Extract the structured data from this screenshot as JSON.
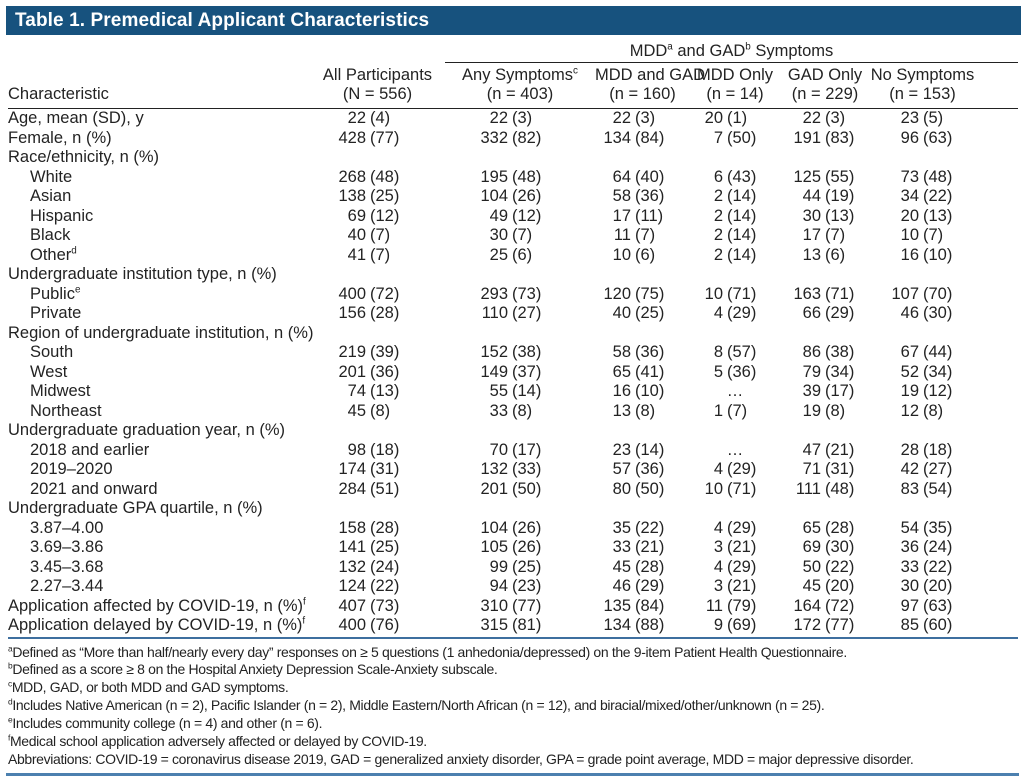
{
  "title": "Table 1. Premedical Applicant Characteristics",
  "colors": {
    "title_bar": "#17527E",
    "black_rule": "#222222",
    "table_end_rule_blue": "#3E6F9F",
    "page_bottom_rule_blue": "#4C80AF"
  },
  "table": {
    "row_header_label": "Characteristic",
    "spanner_label": "MDD^a and GAD^b Symptoms",
    "columns": [
      {
        "label": "All Participants",
        "n": "(N = 556)"
      },
      {
        "label": "Any Symptoms^c",
        "n": "(n = 403)"
      },
      {
        "label": "MDD and GAD",
        "n": "(n = 160)"
      },
      {
        "label": "MDD Only",
        "n": "(n = 14)"
      },
      {
        "label": "GAD Only",
        "n": "(n = 229)"
      },
      {
        "label": "No Symptoms",
        "n": "(n = 153)"
      }
    ],
    "rows": [
      {
        "label": "Age, mean (SD), y",
        "values": [
          "22 (4)",
          "22 (3)",
          "22 (3)",
          "20 (1)",
          "22 (3)",
          "23 (5)"
        ]
      },
      {
        "label": "Female, n (%)",
        "values": [
          "428 (77)",
          "332 (82)",
          "134 (84)",
          "7 (50)",
          "191 (83)",
          "96 (63)"
        ]
      },
      {
        "label": "Race/ethnicity, n (%)"
      },
      {
        "label": "White",
        "indent": true,
        "values": [
          "268 (48)",
          "195 (48)",
          "64 (40)",
          "6 (43)",
          "125 (55)",
          "73 (48)"
        ]
      },
      {
        "label": "Asian",
        "indent": true,
        "values": [
          "138 (25)",
          "104 (26)",
          "58 (36)",
          "2 (14)",
          "44 (19)",
          "34 (22)"
        ]
      },
      {
        "label": "Hispanic",
        "indent": true,
        "values": [
          "69 (12)",
          "49 (12)",
          "17 (11)",
          "2 (14)",
          "30 (13)",
          "20 (13)"
        ]
      },
      {
        "label": "Black",
        "indent": true,
        "values": [
          "40 (7)",
          "30 (7)",
          "11 (7)",
          "2 (14)",
          "17 (7)",
          "10 (7)"
        ]
      },
      {
        "label": "Other^d",
        "indent": true,
        "values": [
          "41 (7)",
          "25 (6)",
          "10 (6)",
          "2 (14)",
          "13 (6)",
          "16 (10)"
        ]
      },
      {
        "label": "Undergraduate institution type, n (%)"
      },
      {
        "label": "Public^e",
        "indent": true,
        "values": [
          "400 (72)",
          "293 (73)",
          "120 (75)",
          "10 (71)",
          "163 (71)",
          "107 (70)"
        ]
      },
      {
        "label": "Private",
        "indent": true,
        "values": [
          "156 (28)",
          "110 (27)",
          "40 (25)",
          "4 (29)",
          "66 (29)",
          "46 (30)"
        ]
      },
      {
        "label": "Region of undergraduate institution, n (%)"
      },
      {
        "label": "South",
        "indent": true,
        "values": [
          "219 (39)",
          "152 (38)",
          "58 (36)",
          "8 (57)",
          "86 (38)",
          "67 (44)"
        ]
      },
      {
        "label": "West",
        "indent": true,
        "values": [
          "201 (36)",
          "149 (37)",
          "65 (41)",
          "5 (36)",
          "79 (34)",
          "52 (34)"
        ]
      },
      {
        "label": "Midwest",
        "indent": true,
        "values": [
          "74 (13)",
          "55 (14)",
          "16 (10)",
          "…",
          "39 (17)",
          "19 (12)"
        ]
      },
      {
        "label": "Northeast",
        "indent": true,
        "values": [
          "45 (8)",
          "33 (8)",
          "13 (8)",
          "1 (7)",
          "19 (8)",
          "12 (8)"
        ]
      },
      {
        "label": "Undergraduate graduation year, n (%)"
      },
      {
        "label": "2018 and earlier",
        "indent": true,
        "values": [
          "98 (18)",
          "70 (17)",
          "23 (14)",
          "…",
          "47 (21)",
          "28 (18)"
        ]
      },
      {
        "label": "2019–2020",
        "indent": true,
        "values": [
          "174 (31)",
          "132 (33)",
          "57 (36)",
          "4 (29)",
          "71 (31)",
          "42 (27)"
        ]
      },
      {
        "label": "2021 and onward",
        "indent": true,
        "values": [
          "284 (51)",
          "201 (50)",
          "80 (50)",
          "10 (71)",
          "111 (48)",
          "83 (54)"
        ]
      },
      {
        "label": "Undergraduate GPA quartile, n (%)"
      },
      {
        "label": "3.87–4.00",
        "indent": true,
        "values": [
          "158 (28)",
          "104 (26)",
          "35 (22)",
          "4 (29)",
          "65 (28)",
          "54 (35)"
        ]
      },
      {
        "label": "3.69–3.86",
        "indent": true,
        "values": [
          "141 (25)",
          "105 (26)",
          "33 (21)",
          "3 (21)",
          "69 (30)",
          "36 (24)"
        ]
      },
      {
        "label": "3.45–3.68",
        "indent": true,
        "values": [
          "132 (24)",
          "99 (25)",
          "45 (28)",
          "4 (29)",
          "50 (22)",
          "33 (22)"
        ]
      },
      {
        "label": "2.27–3.44",
        "indent": true,
        "values": [
          "124 (22)",
          "94 (23)",
          "46 (29)",
          "3 (21)",
          "45 (20)",
          "30 (20)"
        ]
      },
      {
        "label": "Application affected by COVID-19, n (%)^f",
        "values": [
          "407 (73)",
          "310 (77)",
          "135 (84)",
          "11 (79)",
          "164 (72)",
          "97 (63)"
        ]
      },
      {
        "label": "Application delayed by COVID-19, n (%)^f",
        "values": [
          "400 (76)",
          "315 (81)",
          "134 (88)",
          "9 (69)",
          "172 (77)",
          "85 (60)"
        ]
      }
    ]
  },
  "footnotes": [
    "^aDefined as “More than half/nearly every day” responses on ≥ 5 questions (1 anhedonia/depressed) on the 9-item Patient Health Questionnaire.",
    "^bDefined as a score ≥ 8 on the Hospital Anxiety Depression Scale-Anxiety subscale.",
    "^cMDD, GAD, or both MDD and GAD symptoms.",
    "^dIncludes Native American (n = 2), Pacific Islander (n = 2), Middle Eastern/North African (n = 12), and biracial/mixed/other/unknown (n = 25).",
    "^eIncludes community college (n = 4) and other (n = 6).",
    "^fMedical school application adversely affected or delayed by COVID-19.",
    "Abbreviations: COVID-19 = coronavirus disease 2019, GAD = generalized anxiety disorder, GPA = grade point average, MDD = major depressive disorder."
  ]
}
